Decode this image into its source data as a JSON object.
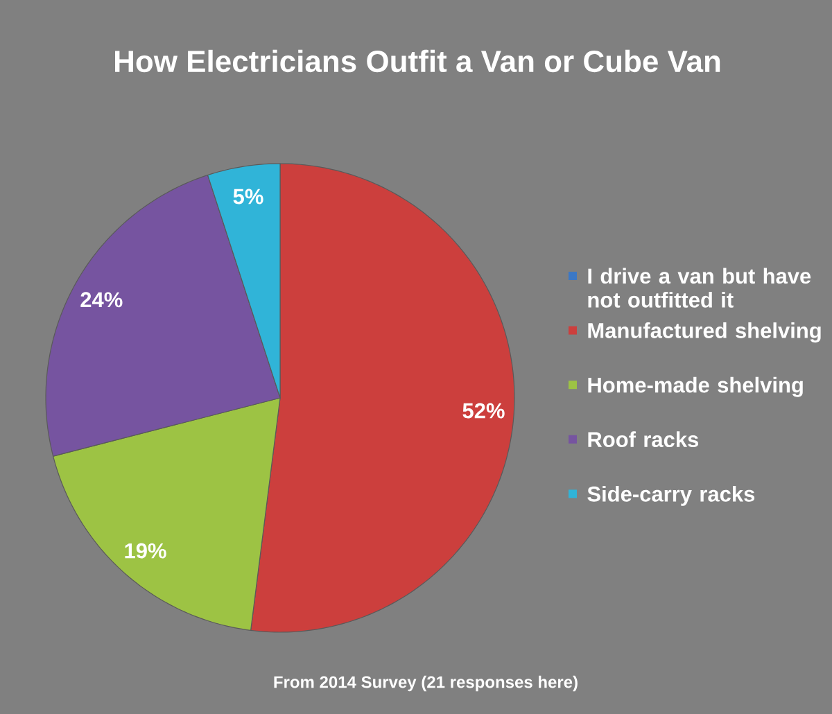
{
  "chart_data": {
    "type": "pie",
    "title": "How Electricians Outfit a Van or Cube Van",
    "categories": [
      "I drive a van but have not outfitted it",
      "Manufactured shelving",
      "Home-made shelving",
      "Roof racks",
      "Side-carry racks"
    ],
    "values": [
      0,
      52,
      19,
      24,
      5
    ],
    "colors": [
      "#3b78c6",
      "#cc3f3d",
      "#9dc344",
      "#7654a0",
      "#30b4d8"
    ],
    "value_labels": [
      null,
      "52%",
      "19%",
      "24%",
      "5%"
    ],
    "legend": "right",
    "annotations": [
      "From 2014 Survey (21 responses here)"
    ]
  }
}
